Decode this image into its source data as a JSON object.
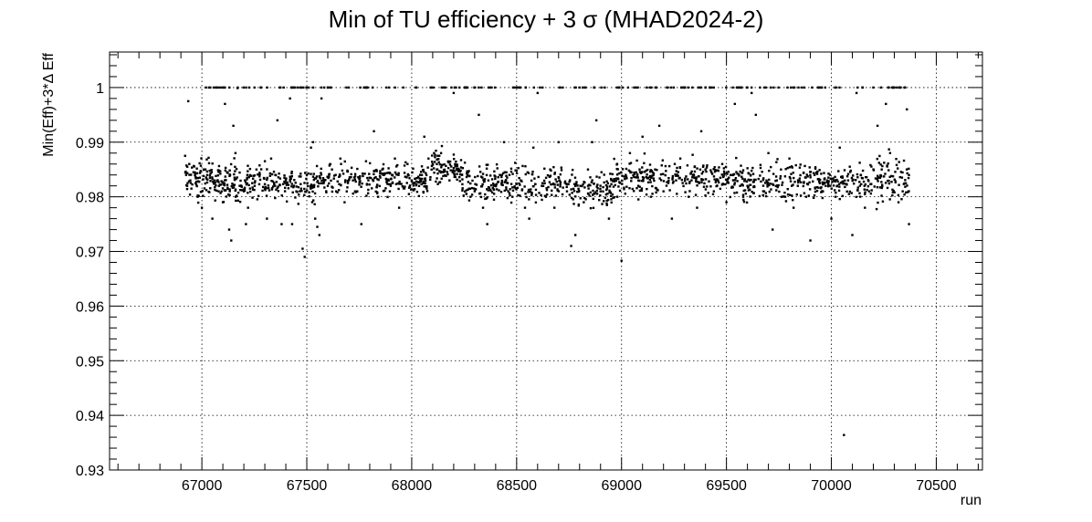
{
  "chart_data": {
    "type": "scatter",
    "title": "Min of TU efficiency + 3 σ (MHAD2024-2)",
    "xlabel": "run",
    "ylabel": "Min(Eff)+3*Δ Eff",
    "xlim": [
      66560,
      70720
    ],
    "ylim": [
      0.93,
      1.0065
    ],
    "x_ticks": [
      67000,
      67500,
      68000,
      68500,
      69000,
      69500,
      70000,
      70500
    ],
    "x_tick_labels": [
      "67000",
      "67500",
      "68000",
      "68500",
      "69000",
      "69500",
      "70000",
      "70500"
    ],
    "y_ticks": [
      0.93,
      0.94,
      0.95,
      0.96,
      0.97,
      0.98,
      0.99,
      1.0
    ],
    "y_tick_labels": [
      "0.93",
      "0.94",
      "0.95",
      "0.96",
      "0.97",
      "0.98",
      "0.99",
      "1"
    ],
    "grid": true,
    "legend": "none",
    "marker_color": "#000000",
    "points": [
      [
        66920,
        0.9875
      ],
      [
        66925,
        0.984
      ],
      [
        66930,
        0.982
      ],
      [
        66935,
        0.9975
      ],
      [
        66940,
        0.986
      ],
      [
        66945,
        0.983
      ],
      [
        66950,
        0.9815
      ],
      [
        66960,
        0.9845
      ],
      [
        66970,
        0.9825
      ],
      [
        66980,
        0.98
      ],
      [
        66990,
        0.9835
      ],
      [
        67000,
        0.978
      ],
      [
        67010,
        0.985
      ],
      [
        67020,
        1.0
      ],
      [
        67040,
        1.0
      ],
      [
        67050,
        0.976
      ],
      [
        67060,
        0.983
      ],
      [
        67070,
        1.0
      ],
      [
        67080,
        0.981
      ],
      [
        67090,
        1.0
      ],
      [
        67100,
        0.979
      ],
      [
        67110,
        0.997
      ],
      [
        67120,
        0.9845
      ],
      [
        67130,
        0.974
      ],
      [
        67140,
        0.972
      ],
      [
        67150,
        0.993
      ],
      [
        67160,
        0.988
      ],
      [
        67170,
        0.9999
      ],
      [
        67180,
        0.982
      ],
      [
        67200,
        0.981
      ],
      [
        67210,
        0.975
      ],
      [
        67220,
        0.978
      ],
      [
        67240,
        0.9825
      ],
      [
        67260,
        0.985
      ],
      [
        67280,
        1.0
      ],
      [
        67300,
        0.9815
      ],
      [
        67310,
        0.976
      ],
      [
        67330,
        0.987
      ],
      [
        67350,
        0.984
      ],
      [
        67360,
        0.994
      ],
      [
        67380,
        0.975
      ],
      [
        67390,
        1.0
      ],
      [
        67400,
        0.983
      ],
      [
        67420,
        0.998
      ],
      [
        67430,
        0.975
      ],
      [
        67450,
        0.981
      ],
      [
        67470,
        1.0
      ],
      [
        67480,
        0.9705
      ],
      [
        67490,
        0.969
      ],
      [
        67500,
        0.984
      ],
      [
        67520,
        0.989
      ],
      [
        67530,
        0.99
      ],
      [
        67540,
        0.976
      ],
      [
        67550,
        0.9745
      ],
      [
        67560,
        0.973
      ],
      [
        67570,
        0.998
      ],
      [
        67600,
        0.982
      ],
      [
        67620,
        0.985
      ],
      [
        67640,
        0.981
      ],
      [
        67660,
        0.987
      ],
      [
        67680,
        0.979
      ],
      [
        67700,
        1.0
      ],
      [
        67720,
        0.983
      ],
      [
        67740,
        0.981
      ],
      [
        67760,
        0.975
      ],
      [
        67780,
        1.0
      ],
      [
        67800,
        0.9835
      ],
      [
        67820,
        0.992
      ],
      [
        67840,
        0.98
      ],
      [
        67860,
        0.985
      ],
      [
        67880,
        1.0
      ],
      [
        67900,
        0.982
      ],
      [
        67920,
        0.987
      ],
      [
        67940,
        0.978
      ],
      [
        67960,
        1.0
      ],
      [
        67980,
        0.986
      ],
      [
        68000,
        0.983
      ],
      [
        68020,
        1.0
      ],
      [
        68040,
        0.984
      ],
      [
        68060,
        0.991
      ],
      [
        68080,
        0.987
      ],
      [
        68100,
        0.986
      ],
      [
        68120,
        0.985
      ],
      [
        68140,
        0.988
      ],
      [
        68160,
        1.0
      ],
      [
        68180,
        0.983
      ],
      [
        68200,
        0.999
      ],
      [
        68220,
        0.985
      ],
      [
        68240,
        0.984
      ],
      [
        68260,
        1.0
      ],
      [
        68280,
        0.98
      ],
      [
        68300,
        0.981
      ],
      [
        68320,
        0.995
      ],
      [
        68340,
        0.978
      ],
      [
        68360,
        0.975
      ],
      [
        68380,
        1.0
      ],
      [
        68400,
        0.982
      ],
      [
        68420,
        0.984
      ],
      [
        68440,
        0.99
      ],
      [
        68460,
        0.981
      ],
      [
        68480,
        0.98
      ],
      [
        68500,
        1.0
      ],
      [
        68520,
        0.983
      ],
      [
        68540,
        0.978
      ],
      [
        68560,
        0.976
      ],
      [
        68580,
        0.989
      ],
      [
        68600,
        0.999
      ],
      [
        68620,
        0.982
      ],
      [
        68640,
        0.98
      ],
      [
        68660,
        0.985
      ],
      [
        68680,
        0.978
      ],
      [
        68700,
        0.99
      ],
      [
        68720,
        1.0
      ],
      [
        68740,
        0.981
      ],
      [
        68760,
        0.971
      ],
      [
        68780,
        0.973
      ],
      [
        68800,
        1.0
      ],
      [
        68820,
        0.979
      ],
      [
        68840,
        0.985
      ],
      [
        68860,
        0.99
      ],
      [
        68880,
        0.994
      ],
      [
        68900,
        0.981
      ],
      [
        68920,
        1.0
      ],
      [
        68940,
        0.976
      ],
      [
        68960,
        0.983
      ],
      [
        68980,
        0.98
      ],
      [
        69000,
        0.9683
      ],
      [
        69020,
        0.984
      ],
      [
        69040,
        0.988
      ],
      [
        69060,
        1.0
      ],
      [
        69080,
        0.982
      ],
      [
        69100,
        0.991
      ],
      [
        69120,
        1.0
      ],
      [
        69140,
        0.98
      ],
      [
        69160,
        0.985
      ],
      [
        69180,
        0.993
      ],
      [
        69200,
        0.981
      ],
      [
        69220,
        1.0
      ],
      [
        69240,
        0.976
      ],
      [
        69260,
        0.983
      ],
      [
        69280,
        0.987
      ],
      [
        69300,
        1.0
      ],
      [
        69320,
        0.98
      ],
      [
        69340,
        0.984
      ],
      [
        69360,
        0.978
      ],
      [
        69380,
        0.992
      ],
      [
        69400,
        0.985
      ],
      [
        69420,
        1.0
      ],
      [
        69440,
        0.981
      ],
      [
        69460,
        0.983
      ],
      [
        69480,
        0.986
      ],
      [
        69500,
        0.979
      ],
      [
        69520,
        0.984
      ],
      [
        69540,
        0.997
      ],
      [
        69560,
        1.0
      ],
      [
        69580,
        0.98
      ],
      [
        69600,
        0.982
      ],
      [
        69620,
        0.999
      ],
      [
        69640,
        0.995
      ],
      [
        69660,
        1.0
      ],
      [
        69680,
        0.981
      ],
      [
        69700,
        0.988
      ],
      [
        69720,
        0.974
      ],
      [
        69740,
        0.983
      ],
      [
        69760,
        0.985
      ],
      [
        69780,
        0.98
      ],
      [
        69800,
        0.987
      ],
      [
        69820,
        0.978
      ],
      [
        69840,
        0.982
      ],
      [
        69860,
        1.0
      ],
      [
        69880,
        0.98
      ],
      [
        69900,
        0.972
      ],
      [
        69920,
        0.984
      ],
      [
        69940,
        1.0
      ],
      [
        69960,
        0.981
      ],
      [
        69980,
        0.983
      ],
      [
        70000,
        0.976
      ],
      [
        70020,
        0.98
      ],
      [
        70040,
        0.989
      ],
      [
        70060,
        0.9364
      ],
      [
        70080,
        0.983
      ],
      [
        70100,
        0.973
      ],
      [
        70120,
        0.999
      ],
      [
        70140,
        0.984
      ],
      [
        70160,
        0.978
      ],
      [
        70180,
        0.981
      ],
      [
        70200,
        1.0
      ],
      [
        70220,
        0.993
      ],
      [
        70240,
        0.985
      ],
      [
        70260,
        0.997
      ],
      [
        70280,
        0.988
      ],
      [
        70300,
        1.0
      ],
      [
        70320,
        0.979
      ],
      [
        70340,
        0.981
      ],
      [
        70360,
        0.996
      ],
      [
        70370,
        0.975
      ]
    ],
    "bands": [
      {
        "x_start": 66920,
        "x_end": 67160,
        "y_center": 0.983,
        "spread": 0.0035,
        "count": 140
      },
      {
        "x_start": 67160,
        "x_end": 67560,
        "y_center": 0.9825,
        "spread": 0.003,
        "count": 180
      },
      {
        "x_start": 67560,
        "x_end": 68080,
        "y_center": 0.983,
        "spread": 0.0028,
        "count": 240
      },
      {
        "x_start": 68080,
        "x_end": 68240,
        "y_center": 0.9855,
        "spread": 0.003,
        "count": 90
      },
      {
        "x_start": 68240,
        "x_end": 68720,
        "y_center": 0.9825,
        "spread": 0.003,
        "count": 220
      },
      {
        "x_start": 68720,
        "x_end": 68960,
        "y_center": 0.9815,
        "spread": 0.0035,
        "count": 110
      },
      {
        "x_start": 68960,
        "x_end": 69480,
        "y_center": 0.9835,
        "spread": 0.003,
        "count": 230
      },
      {
        "x_start": 69480,
        "x_end": 69880,
        "y_center": 0.983,
        "spread": 0.0032,
        "count": 180
      },
      {
        "x_start": 69880,
        "x_end": 70180,
        "y_center": 0.9825,
        "spread": 0.003,
        "count": 140
      },
      {
        "x_start": 70180,
        "x_end": 70370,
        "y_center": 0.983,
        "spread": 0.004,
        "count": 90
      }
    ],
    "ceiling_points": {
      "y": 1.0,
      "x_start": 67000,
      "x_end": 70360,
      "count": 160
    }
  }
}
